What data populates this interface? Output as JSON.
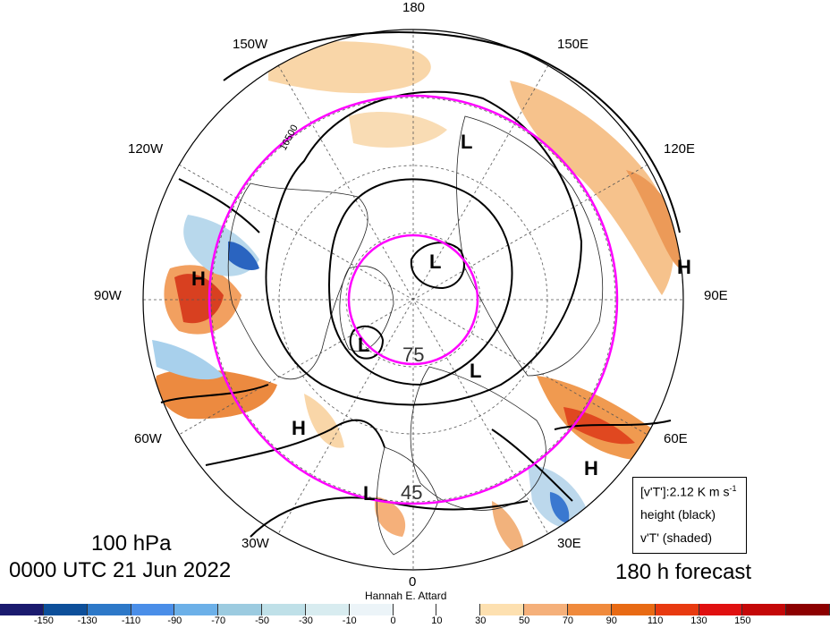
{
  "map": {
    "projection": "north-polar-stereographic",
    "longitude_labels": [
      "180",
      "150E",
      "120E",
      "90E",
      "60E",
      "30E",
      "0",
      "30W",
      "60W",
      "90W",
      "120W",
      "150W"
    ],
    "contour_label_1": "16500",
    "magenta_circle_labels": [
      "75",
      "45"
    ],
    "pressure_centers": [
      "L",
      "L",
      "H",
      "H",
      "L",
      "L",
      "H",
      "L",
      "H"
    ],
    "colors": {
      "contours": "#000000",
      "magenta_circles": "#ff00ff",
      "land_outline": "#000000",
      "graticule": "#555555"
    }
  },
  "titles": {
    "level": "100 hPa",
    "time": "0000 UTC 21 Jun 2022",
    "forecast": "180 h forecast",
    "credit": "Hannah E. Attard"
  },
  "legend": {
    "line1": "[v'T']:2.12 K m s",
    "line1_sup": "-1",
    "line2": "height (black)",
    "line3": "v'T' (shaded)"
  },
  "colorbar": {
    "colors": [
      "#1a1a6e",
      "#0d4f9a",
      "#2d78c8",
      "#4a8ee8",
      "#6cb0e8",
      "#9ccbe0",
      "#bfe0e8",
      "#d8ecf0",
      "#ecf4f8",
      "#ffffff",
      "#ffffff",
      "#fde0b0",
      "#f5b07a",
      "#f08a3c",
      "#e86a14",
      "#e83a10",
      "#e01010",
      "#c40808",
      "#8c0000"
    ],
    "tick_labels": [
      "-150",
      "-130",
      "-110",
      "-90",
      "-70",
      "-50",
      "-30",
      "-10",
      "0",
      "10",
      "30",
      "50",
      "70",
      "90",
      "110",
      "130",
      "150"
    ]
  }
}
